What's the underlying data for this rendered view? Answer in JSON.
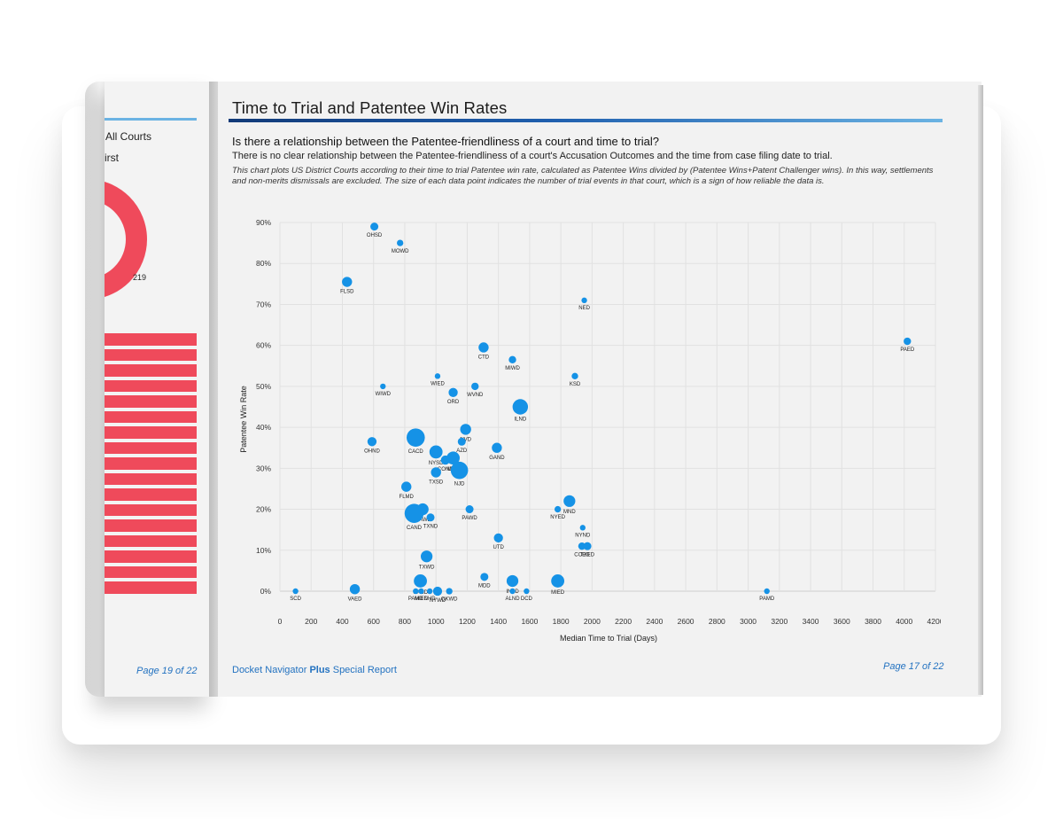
{
  "left_page": {
    "label_all_courts": "All Courts",
    "label_first": "irst",
    "donut_value": "219",
    "page_number": "Page 19 of 22",
    "bar_count": 17
  },
  "right_page": {
    "title": "Time to Trial and Patentee Win Rates",
    "question": "Is there a relationship between the Patentee-friendliness of a court and time to trial?",
    "subline": "There is no clear relationship between the Patentee-friendliness of a court's Accusation Outcomes and the time from case filing date to trial.",
    "note": "This chart plots US District Courts according to their time to trial Patentee win rate, calculated as Patentee Wins divided by (Patentee Wins+Patent Challenger wins). In this way, settlements and non-merits dismissals are excluded. The size of each data point indicates the number of trial events in that court, which is a sign of how reliable the data is.",
    "footer_prefix": "Docket Navigator ",
    "footer_bold": "Plus",
    "footer_suffix": " Special Report",
    "page_number": "Page 17 of 22"
  },
  "colors": {
    "accent_red": "#ef4a5b",
    "accent_blue": "#2372c0",
    "point_blue": "#1592e6"
  },
  "chart_data": {
    "type": "scatter",
    "title": "",
    "xlabel": "Median Time to Trial (Days)",
    "ylabel": "Patentee Win Rate",
    "xlim": [
      0,
      4200
    ],
    "ylim": [
      0,
      90
    ],
    "xticks": [
      0,
      200,
      400,
      600,
      800,
      1000,
      1200,
      1400,
      1600,
      1800,
      2000,
      2200,
      2400,
      2600,
      2800,
      3000,
      3200,
      3400,
      3600,
      3800,
      4000,
      4200
    ],
    "yticks": [
      0,
      10,
      20,
      30,
      40,
      50,
      60,
      70,
      80,
      90
    ],
    "ytick_suffix": "%",
    "size_meaning": "number of trial events",
    "points": [
      {
        "label": "OHSD",
        "x": 605,
        "y": 89,
        "size": 1
      },
      {
        "label": "MOWD",
        "x": 770,
        "y": 85,
        "size": 0.5
      },
      {
        "label": "FLSD",
        "x": 430,
        "y": 75.5,
        "size": 2
      },
      {
        "label": "NED",
        "x": 1950,
        "y": 71,
        "size": 0.3
      },
      {
        "label": "PAED",
        "x": 4020,
        "y": 61,
        "size": 0.8
      },
      {
        "label": "CTD",
        "x": 1305,
        "y": 59.5,
        "size": 2
      },
      {
        "label": "MIWD",
        "x": 1490,
        "y": 56.5,
        "size": 0.8
      },
      {
        "label": "KSD",
        "x": 1890,
        "y": 52.5,
        "size": 0.5
      },
      {
        "label": "WIED",
        "x": 1010,
        "y": 52.5,
        "size": 0.3
      },
      {
        "label": "WIWD",
        "x": 660,
        "y": 50,
        "size": 0.3
      },
      {
        "label": "ORD",
        "x": 1110,
        "y": 48.5,
        "size": 1.5
      },
      {
        "label": "WVND",
        "x": 1250,
        "y": 50,
        "size": 0.8
      },
      {
        "label": "ILND",
        "x": 1540,
        "y": 45,
        "size": 6
      },
      {
        "label": "NVD",
        "x": 1190,
        "y": 39.5,
        "size": 2.5
      },
      {
        "label": "AZD",
        "x": 1165,
        "y": 36.5,
        "size": 1
      },
      {
        "label": "OHND",
        "x": 590,
        "y": 36.5,
        "size": 1.5
      },
      {
        "label": "CACD",
        "x": 870,
        "y": 37.5,
        "size": 9
      },
      {
        "label": "GAND",
        "x": 1390,
        "y": 35,
        "size": 2
      },
      {
        "label": "NYSD",
        "x": 1000,
        "y": 34,
        "size": 4
      },
      {
        "label": "COND",
        "x": 1060,
        "y": 32,
        "size": 1.5
      },
      {
        "label": "MAD",
        "x": 1110,
        "y": 32.5,
        "size": 4
      },
      {
        "label": "TXSD",
        "x": 1000,
        "y": 29,
        "size": 2
      },
      {
        "label": "NJD",
        "x": 1150,
        "y": 29.5,
        "size": 8
      },
      {
        "label": "FLMD",
        "x": 810,
        "y": 25.5,
        "size": 2
      },
      {
        "label": "MND",
        "x": 1855,
        "y": 22,
        "size": 3
      },
      {
        "label": "NYED",
        "x": 1780,
        "y": 20,
        "size": 0.5
      },
      {
        "label": "PAWD",
        "x": 1215,
        "y": 20,
        "size": 1
      },
      {
        "label": "WAWD",
        "x": 915,
        "y": 20,
        "size": 3
      },
      {
        "label": "CAND",
        "x": 860,
        "y": 19,
        "size": 10
      },
      {
        "label": "TXND",
        "x": 965,
        "y": 18,
        "size": 1
      },
      {
        "label": "NYND",
        "x": 1940,
        "y": 15.5,
        "size": 0.3
      },
      {
        "label": "UTD",
        "x": 1400,
        "y": 13,
        "size": 1.5
      },
      {
        "label": "COED",
        "x": 1935,
        "y": 11,
        "size": 0.8
      },
      {
        "label": "TXED",
        "x": 1970,
        "y": 11,
        "size": 1
      },
      {
        "label": "TXWD",
        "x": 940,
        "y": 8.5,
        "size": 3
      },
      {
        "label": "MDD",
        "x": 1310,
        "y": 3.5,
        "size": 1
      },
      {
        "label": "INSD",
        "x": 1490,
        "y": 2.5,
        "size": 3
      },
      {
        "label": "MIED",
        "x": 1780,
        "y": 2.5,
        "size": 4
      },
      {
        "label": "CASD",
        "x": 900,
        "y": 2.5,
        "size": 4
      },
      {
        "label": "VAED",
        "x": 480,
        "y": 0.5,
        "size": 2
      },
      {
        "label": "SCD",
        "x": 100,
        "y": 0,
        "size": 0.3
      },
      {
        "label": "PAMD",
        "x": 3120,
        "y": 0,
        "size": 0.3
      },
      {
        "label": "ALND",
        "x": 1490,
        "y": 0,
        "size": 0.3
      },
      {
        "label": "DCD",
        "x": 1580,
        "y": 0,
        "size": 0.3
      },
      {
        "label": "OKWD",
        "x": 1085,
        "y": 0,
        "size": 0.5
      },
      {
        "label": "NYWD",
        "x": 1010,
        "y": 0,
        "size": 1.5
      },
      {
        "label": "PAWD2",
        "display": "PAMD",
        "x": 870,
        "y": 0,
        "size": 0.3
      },
      {
        "label": "MIED2",
        "display": "MIED",
        "x": 905,
        "y": 0,
        "size": 0.3
      },
      {
        "label": "NHD",
        "x": 960,
        "y": 0,
        "size": 0.3
      }
    ]
  }
}
